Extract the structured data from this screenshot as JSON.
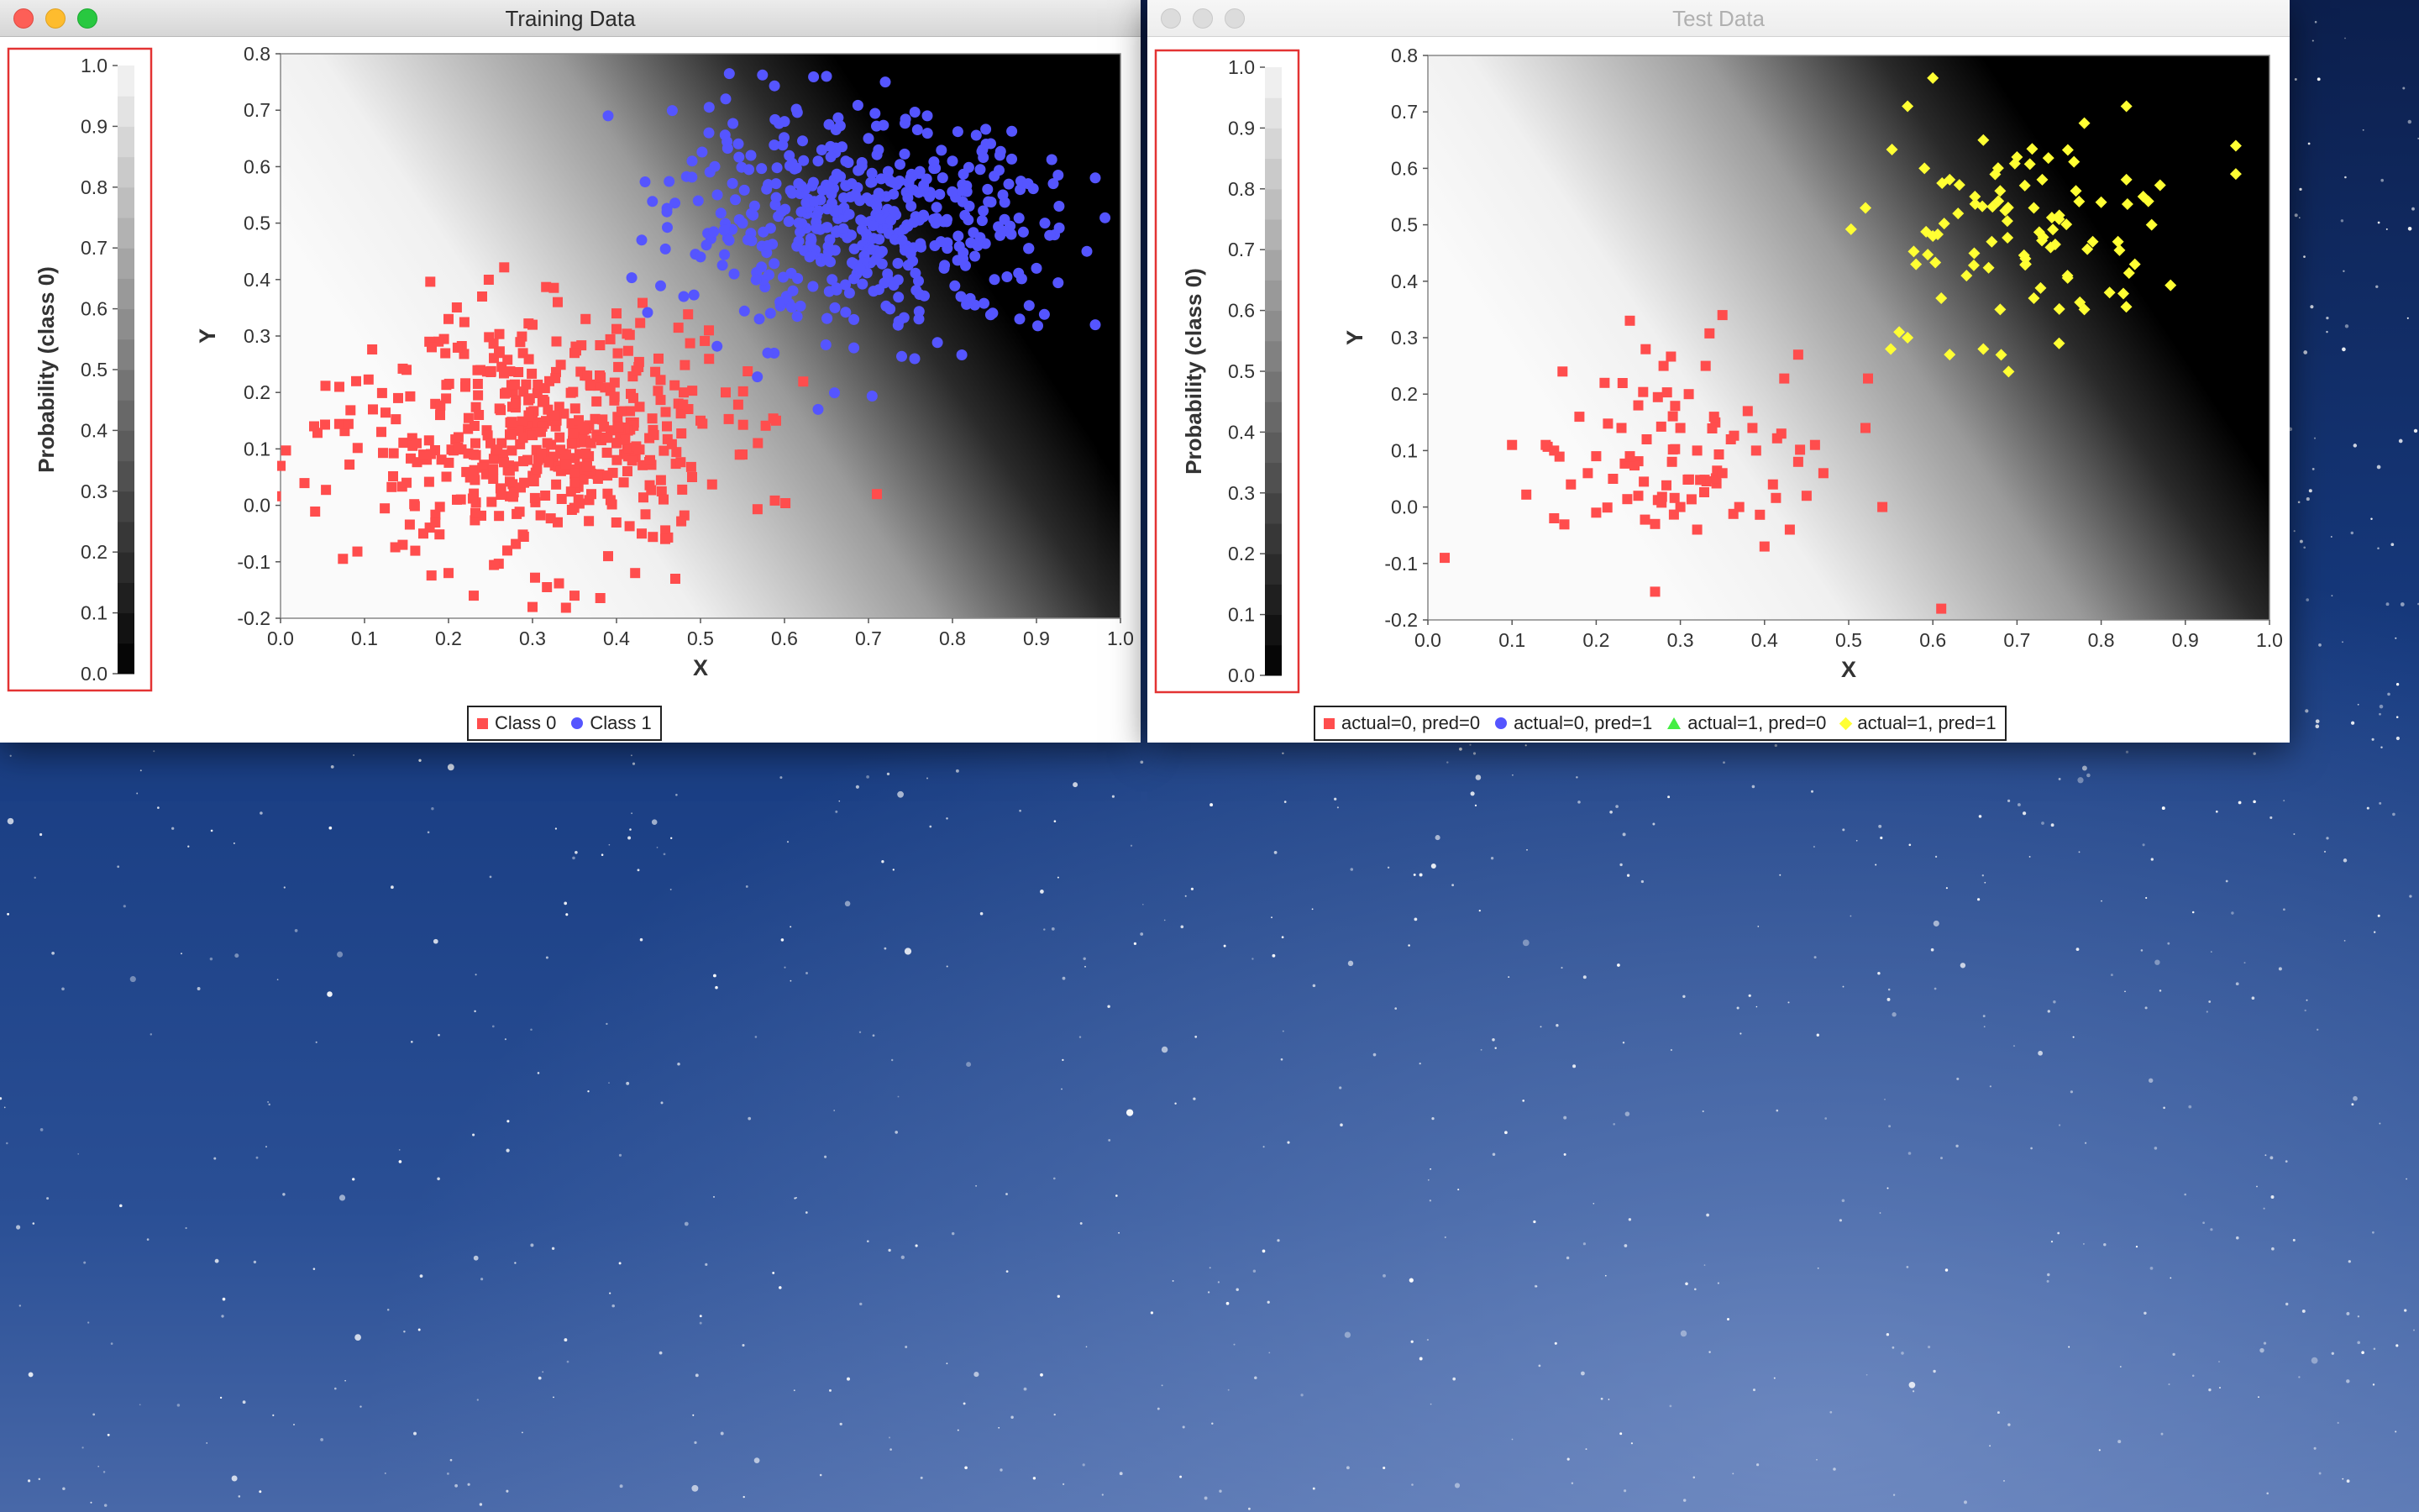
{
  "colors": {
    "class0": "#ff4d4d",
    "class1": "#5555ff",
    "actual0_pred0": "#ff4d4d",
    "actual0_pred1": "#5555ff",
    "actual1_pred0": "#44ee44",
    "actual1_pred1": "#ffff33",
    "colorbar_box": "#e33333"
  },
  "windows": {
    "training": {
      "title": "Training Data",
      "legend": [
        {
          "label": "Class 0",
          "symbol": "square",
          "color": "#ff4d4d"
        },
        {
          "label": "Class 1",
          "symbol": "circle",
          "color": "#5555ff"
        }
      ]
    },
    "test": {
      "title": "Test Data",
      "legend": [
        {
          "label": "actual=0, pred=0",
          "symbol": "square",
          "color": "#ff4d4d"
        },
        {
          "label": "actual=0, pred=1",
          "symbol": "circle",
          "color": "#5555ff"
        },
        {
          "label": "actual=1, pred=0",
          "symbol": "triangle",
          "color": "#44ee44"
        },
        {
          "label": "actual=1, pred=1",
          "symbol": "diamond",
          "color": "#ffff33"
        }
      ]
    }
  },
  "chart_data": [
    {
      "type": "scatter",
      "xlabel": "X",
      "ylabel": "Y",
      "xlim": [
        0.0,
        1.0
      ],
      "ylim": [
        -0.2,
        0.8
      ],
      "x_ticks": [
        "0.0",
        "0.1",
        "0.2",
        "0.3",
        "0.4",
        "0.5",
        "0.6",
        "0.7",
        "0.8",
        "0.9",
        "1.0"
      ],
      "y_ticks": [
        "-0.2",
        "-0.1",
        "0.0",
        "0.1",
        "0.2",
        "0.3",
        "0.4",
        "0.5",
        "0.6",
        "0.7",
        "0.8"
      ],
      "background": {
        "type": "heatmap",
        "quantity": "probability of class 0",
        "boundary": "x + y = 0.98",
        "direction": "white toward lower-left, black toward upper-right"
      },
      "colorbar": {
        "label": "Probability (class 0)",
        "range": [
          0.0,
          1.0
        ],
        "ticks": [
          "0.0",
          "0.1",
          "0.2",
          "0.3",
          "0.4",
          "0.5",
          "0.6",
          "0.7",
          "0.8",
          "0.9",
          "1.0"
        ]
      },
      "series": [
        {
          "name": "Class 0",
          "color": "#ff4d4d",
          "marker": "square",
          "approx_count": 500,
          "points": [
            [
              0.0,
              0.07
            ],
            [
              0.04,
              0.14
            ],
            [
              0.07,
              0.21
            ],
            [
              0.09,
              0.22
            ],
            [
              0.11,
              0.17
            ],
            [
              0.12,
              0.13
            ],
            [
              0.14,
              0.19
            ],
            [
              0.15,
              0.04
            ],
            [
              0.15,
              0.24
            ],
            [
              0.17,
              0.09
            ],
            [
              0.17,
              -0.05
            ],
            [
              0.18,
              0.28
            ],
            [
              0.19,
              0.16
            ],
            [
              0.2,
              -0.12
            ],
            [
              0.2,
              0.33
            ],
            [
              0.21,
              0.01
            ],
            [
              0.22,
              0.21
            ],
            [
              0.23,
              0.09
            ],
            [
              0.23,
              -0.16
            ],
            [
              0.24,
              0.37
            ],
            [
              0.25,
              0.11
            ],
            [
              0.26,
              0.27
            ],
            [
              0.27,
              -0.08
            ],
            [
              0.28,
              0.18
            ],
            [
              0.29,
              0.04
            ],
            [
              0.3,
              0.32
            ],
            [
              0.3,
              -0.18
            ],
            [
              0.31,
              0.13
            ],
            [
              0.32,
              0.22
            ],
            [
              0.33,
              -0.03
            ],
            [
              0.33,
              0.36
            ],
            [
              0.34,
              0.09
            ],
            [
              0.35,
              0.27
            ],
            [
              0.35,
              -0.16
            ],
            [
              0.36,
              0.14
            ],
            [
              0.37,
              0.02
            ],
            [
              0.38,
              0.23
            ],
            [
              0.39,
              -0.09
            ],
            [
              0.4,
              0.11
            ],
            [
              0.4,
              0.34
            ],
            [
              0.42,
              0.19
            ],
            [
              0.43,
              -0.05
            ],
            [
              0.44,
              0.08
            ],
            [
              0.45,
              0.26
            ],
            [
              0.46,
              0.14
            ],
            [
              0.47,
              -0.13
            ],
            [
              0.48,
              0.2
            ],
            [
              0.49,
              0.05
            ],
            [
              0.5,
              0.15
            ],
            [
              0.51,
              0.31
            ],
            [
              0.53,
              0.2
            ],
            [
              0.55,
              0.09
            ],
            [
              0.59,
              0.15
            ],
            [
              0.71,
              0.02
            ]
          ]
        },
        {
          "name": "Class 1",
          "color": "#5555ff",
          "marker": "circle",
          "approx_count": 500,
          "points": [
            [
              0.39,
              0.69
            ],
            [
              0.43,
              0.47
            ],
            [
              0.46,
              0.52
            ],
            [
              0.48,
              0.37
            ],
            [
              0.49,
              0.61
            ],
            [
              0.5,
              0.44
            ],
            [
              0.51,
              0.66
            ],
            [
              0.52,
              0.55
            ],
            [
              0.53,
              0.72
            ],
            [
              0.54,
              0.41
            ],
            [
              0.55,
              0.5
            ],
            [
              0.56,
              0.62
            ],
            [
              0.57,
              0.33
            ],
            [
              0.58,
              0.46
            ],
            [
              0.59,
              0.57
            ],
            [
              0.6,
              0.68
            ],
            [
              0.61,
              0.38
            ],
            [
              0.62,
              0.52
            ],
            [
              0.63,
              0.44
            ],
            [
              0.64,
              0.17
            ],
            [
              0.64,
              0.61
            ],
            [
              0.65,
              0.76
            ],
            [
              0.66,
              0.35
            ],
            [
              0.67,
              0.49
            ],
            [
              0.68,
              0.57
            ],
            [
              0.69,
              0.42
            ],
            [
              0.7,
              0.65
            ],
            [
              0.71,
              0.53
            ],
            [
              0.72,
              0.75
            ],
            [
              0.73,
              0.39
            ],
            [
              0.74,
              0.47
            ],
            [
              0.75,
              0.58
            ],
            [
              0.76,
              0.33
            ],
            [
              0.77,
              0.69
            ],
            [
              0.78,
              0.5
            ],
            [
              0.79,
              0.42
            ],
            [
              0.8,
              0.61
            ],
            [
              0.81,
              0.37
            ],
            [
              0.82,
              0.53
            ],
            [
              0.83,
              0.46
            ],
            [
              0.84,
              0.64
            ],
            [
              0.85,
              0.4
            ],
            [
              0.86,
              0.55
            ],
            [
              0.87,
              0.48
            ],
            [
              0.88,
              0.33
            ],
            [
              0.89,
              0.57
            ],
            [
              0.9,
              0.42
            ],
            [
              0.91,
              0.5
            ],
            [
              0.92,
              0.57
            ],
            [
              0.96,
              0.45
            ],
            [
              0.97,
              0.58
            ],
            [
              0.97,
              0.32
            ],
            [
              0.58,
              0.27
            ]
          ]
        }
      ]
    },
    {
      "type": "scatter",
      "xlabel": "X",
      "ylabel": "Y",
      "xlim": [
        0.0,
        1.0
      ],
      "ylim": [
        -0.2,
        0.8
      ],
      "x_ticks": [
        "0.0",
        "0.1",
        "0.2",
        "0.3",
        "0.4",
        "0.5",
        "0.6",
        "0.7",
        "0.8",
        "0.9",
        "1.0"
      ],
      "y_ticks": [
        "-0.2",
        "-0.1",
        "0.0",
        "0.1",
        "0.2",
        "0.3",
        "0.4",
        "0.5",
        "0.6",
        "0.7",
        "0.8"
      ],
      "background": {
        "type": "heatmap",
        "quantity": "probability of class 0",
        "boundary": "x + y = 0.98",
        "direction": "white toward lower-left, black toward upper-right"
      },
      "colorbar": {
        "label": "Probability (class 0)",
        "range": [
          0.0,
          1.0
        ],
        "ticks": [
          "0.0",
          "0.1",
          "0.2",
          "0.3",
          "0.4",
          "0.5",
          "0.6",
          "0.7",
          "0.8",
          "0.9",
          "1.0"
        ]
      },
      "series": [
        {
          "name": "actual=0, pred=0",
          "color": "#ff4d4d",
          "marker": "square",
          "approx_count": 100,
          "points": [
            [
              0.02,
              -0.09
            ],
            [
              0.1,
              0.11
            ],
            [
              0.14,
              0.11
            ],
            [
              0.15,
              0.1
            ],
            [
              0.15,
              -0.02
            ],
            [
              0.16,
              0.24
            ],
            [
              0.17,
              0.04
            ],
            [
              0.18,
              0.16
            ],
            [
              0.19,
              0.06
            ],
            [
              0.2,
              0.09
            ],
            [
              0.2,
              -0.01
            ],
            [
              0.21,
              0.22
            ],
            [
              0.22,
              0.05
            ],
            [
              0.23,
              0.14
            ],
            [
              0.24,
              0.33
            ],
            [
              0.24,
              0.09
            ],
            [
              0.25,
              0.02
            ],
            [
              0.25,
              0.18
            ],
            [
              0.26,
              0.12
            ],
            [
              0.27,
              -0.03
            ],
            [
              0.27,
              -0.15
            ],
            [
              0.28,
              0.25
            ],
            [
              0.29,
              0.08
            ],
            [
              0.3,
              0.14
            ],
            [
              0.3,
              0.0
            ],
            [
              0.31,
              0.2
            ],
            [
              0.32,
              0.1
            ],
            [
              0.32,
              -0.04
            ],
            [
              0.33,
              0.25
            ],
            [
              0.34,
              0.16
            ],
            [
              0.35,
              0.06
            ],
            [
              0.35,
              0.34
            ],
            [
              0.36,
              0.12
            ],
            [
              0.37,
              0.0
            ],
            [
              0.38,
              0.17
            ],
            [
              0.39,
              0.1
            ],
            [
              0.4,
              -0.07
            ],
            [
              0.41,
              0.04
            ],
            [
              0.42,
              0.13
            ],
            [
              0.43,
              -0.04
            ],
            [
              0.44,
              0.08
            ],
            [
              0.44,
              0.27
            ],
            [
              0.45,
              0.02
            ],
            [
              0.46,
              0.11
            ],
            [
              0.47,
              0.06
            ],
            [
              0.52,
              0.14
            ],
            [
              0.54,
              0.0
            ],
            [
              0.61,
              -0.18
            ]
          ]
        },
        {
          "name": "actual=0, pred=1",
          "color": "#5555ff",
          "marker": "circle",
          "points": []
        },
        {
          "name": "actual=1, pred=0",
          "color": "#44ee44",
          "marker": "triangle",
          "points": []
        },
        {
          "name": "actual=1, pred=1",
          "color": "#ffff33",
          "marker": "diamond",
          "approx_count": 100,
          "points": [
            [
              0.52,
              0.53
            ],
            [
              0.55,
              0.28
            ],
            [
              0.56,
              0.31
            ],
            [
              0.57,
              0.71
            ],
            [
              0.57,
              0.3
            ],
            [
              0.58,
              0.43
            ],
            [
              0.59,
              0.6
            ],
            [
              0.6,
              0.76
            ],
            [
              0.6,
              0.48
            ],
            [
              0.61,
              0.37
            ],
            [
              0.62,
              0.58
            ],
            [
              0.62,
              0.27
            ],
            [
              0.63,
              0.52
            ],
            [
              0.64,
              0.41
            ],
            [
              0.65,
              0.55
            ],
            [
              0.66,
              0.28
            ],
            [
              0.66,
              0.65
            ],
            [
              0.67,
              0.47
            ],
            [
              0.68,
              0.35
            ],
            [
              0.68,
              0.56
            ],
            [
              0.69,
              0.24
            ],
            [
              0.7,
              0.62
            ],
            [
              0.71,
              0.44
            ],
            [
              0.72,
              0.53
            ],
            [
              0.72,
              0.37
            ],
            [
              0.73,
              0.58
            ],
            [
              0.74,
              0.46
            ],
            [
              0.75,
              0.29
            ],
            [
              0.75,
              0.51
            ],
            [
              0.76,
              0.41
            ],
            [
              0.77,
              0.56
            ],
            [
              0.78,
              0.68
            ],
            [
              0.78,
              0.35
            ],
            [
              0.79,
              0.47
            ],
            [
              0.8,
              0.54
            ],
            [
              0.81,
              0.38
            ],
            [
              0.82,
              0.47
            ],
            [
              0.83,
              0.71
            ],
            [
              0.83,
              0.58
            ],
            [
              0.84,
              0.43
            ],
            [
              0.85,
              0.55
            ],
            [
              0.86,
              0.5
            ],
            [
              0.87,
              0.57
            ],
            [
              0.96,
              0.64
            ],
            [
              0.96,
              0.59
            ]
          ]
        }
      ]
    }
  ]
}
